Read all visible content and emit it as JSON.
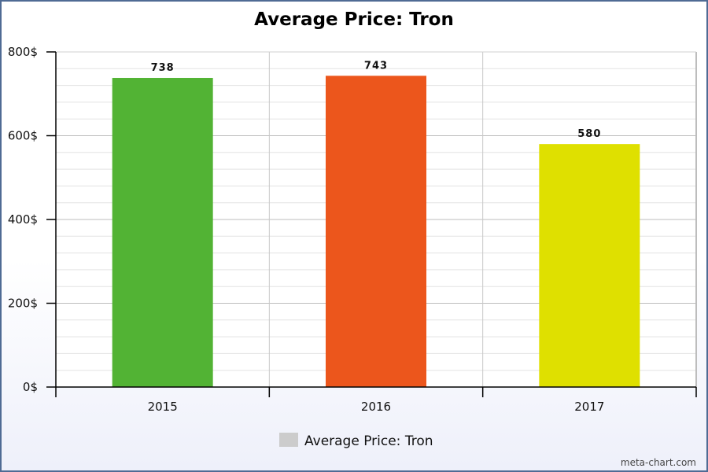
{
  "chart_data": {
    "type": "bar",
    "title": "Average Price: Tron",
    "categories": [
      "2015",
      "2016",
      "2017"
    ],
    "series": [
      {
        "name": "Average Price: Tron",
        "values": [
          738,
          743,
          580
        ],
        "data_labels": [
          "738",
          "743",
          "580"
        ]
      }
    ],
    "bar_colors": [
      "#52b334",
      "#ec561c",
      "#dfe000"
    ],
    "ylim": [
      0,
      800
    ],
    "y_ticks": [
      0,
      200,
      400,
      600,
      800
    ],
    "y_tick_labels": [
      "0$",
      "200$",
      "400$",
      "600$",
      "800$"
    ],
    "grid": true,
    "legend_position": "bottom-center",
    "legend_swatch_color": "#cccccc"
  },
  "credit": "meta-chart.com"
}
